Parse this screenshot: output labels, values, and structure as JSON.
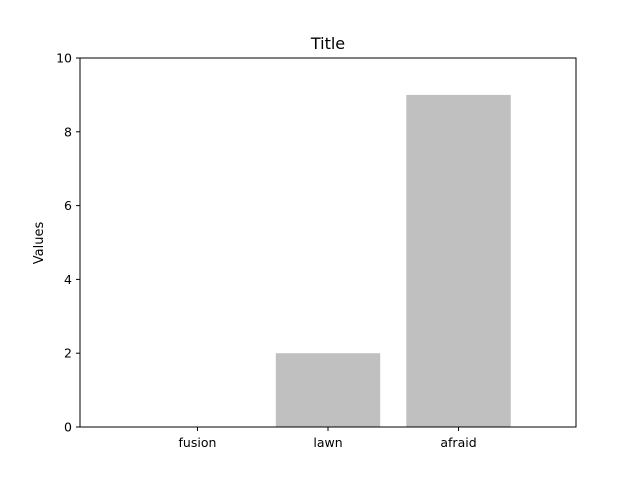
{
  "chart_data": {
    "type": "bar",
    "title": "Title",
    "xlabel": "",
    "ylabel": "Values",
    "categories": [
      "fusion",
      "lawn",
      "afraid"
    ],
    "values": [
      0,
      2,
      9
    ],
    "ylim": [
      0,
      10
    ],
    "yticks": [
      0,
      2,
      4,
      6,
      8,
      10
    ],
    "bar_color": "#c0c0c0",
    "grid": false,
    "legend": "none"
  }
}
